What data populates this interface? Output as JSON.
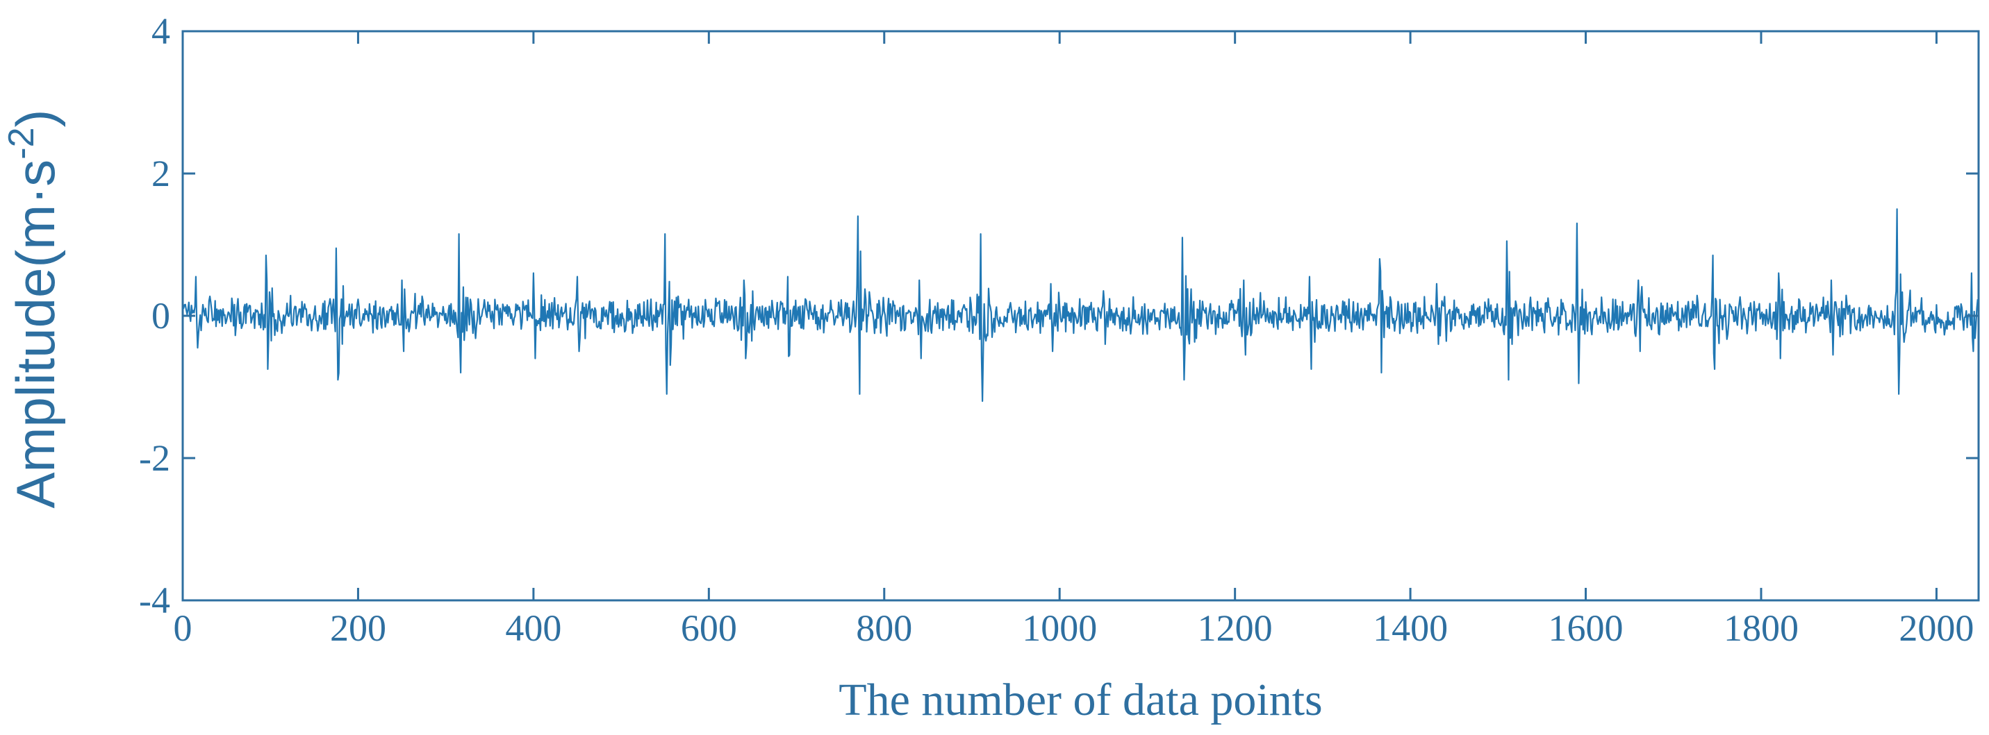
{
  "colors": {
    "signal": "#1f77b4",
    "axis": "#2e6fa0",
    "text": "#2e6fa0"
  },
  "chart_data": {
    "type": "line",
    "title": "",
    "xlabel": "The number of data points",
    "ylabel_base": "Amplitude(m",
    "ylabel_mid": "·s",
    "ylabel_sup": "-2",
    "ylabel_end": ")",
    "xlim": [
      0,
      2048
    ],
    "ylim": [
      -4,
      4
    ],
    "xticks": [
      0,
      200,
      400,
      600,
      800,
      1000,
      1200,
      1400,
      1600,
      1800,
      2000
    ],
    "xtick_labels": [
      "0",
      "200",
      "400",
      "600",
      "800",
      "1000",
      "1200",
      "1400",
      "1600",
      "1800",
      "2000"
    ],
    "yticks": [
      -4,
      -2,
      0,
      2,
      4
    ],
    "ytick_labels": [
      "-4",
      "-2",
      "0",
      "2",
      "4"
    ],
    "grid": false,
    "legend": "none",
    "n_points": 2048,
    "baseline_amplitude": 0.2,
    "bursts": [
      {
        "x": 15,
        "peak": 0.55,
        "trough": -0.45
      },
      {
        "x": 95,
        "peak": 0.85,
        "trough": -0.75
      },
      {
        "x": 175,
        "peak": 0.95,
        "trough": -0.9
      },
      {
        "x": 250,
        "peak": 0.5,
        "trough": -0.5
      },
      {
        "x": 315,
        "peak": 1.15,
        "trough": -0.8
      },
      {
        "x": 400,
        "peak": 0.6,
        "trough": -0.6
      },
      {
        "x": 450,
        "peak": 0.55,
        "trough": -0.5
      },
      {
        "x": 550,
        "peak": 1.15,
        "trough": -1.1
      },
      {
        "x": 640,
        "peak": 0.5,
        "trough": -0.6
      },
      {
        "x": 690,
        "peak": 0.55,
        "trough": -0.55
      },
      {
        "x": 770,
        "peak": 1.4,
        "trough": -1.1
      },
      {
        "x": 840,
        "peak": 0.5,
        "trough": -0.6
      },
      {
        "x": 910,
        "peak": 1.15,
        "trough": -1.2
      },
      {
        "x": 990,
        "peak": 0.45,
        "trough": -0.5
      },
      {
        "x": 1050,
        "peak": 0.35,
        "trough": -0.4
      },
      {
        "x": 1140,
        "peak": 1.1,
        "trough": -0.9
      },
      {
        "x": 1210,
        "peak": 0.5,
        "trough": -0.55
      },
      {
        "x": 1285,
        "peak": 0.55,
        "trough": -0.75
      },
      {
        "x": 1365,
        "peak": 0.8,
        "trough": -0.8
      },
      {
        "x": 1430,
        "peak": 0.45,
        "trough": -0.4
      },
      {
        "x": 1510,
        "peak": 1.05,
        "trough": -0.9
      },
      {
        "x": 1590,
        "peak": 1.3,
        "trough": -0.95
      },
      {
        "x": 1660,
        "peak": 0.5,
        "trough": -0.5
      },
      {
        "x": 1745,
        "peak": 0.85,
        "trough": -0.75
      },
      {
        "x": 1820,
        "peak": 0.6,
        "trough": -0.6
      },
      {
        "x": 1880,
        "peak": 0.5,
        "trough": -0.55
      },
      {
        "x": 1955,
        "peak": 1.5,
        "trough": -1.1
      },
      {
        "x": 2040,
        "peak": 0.6,
        "trough": -0.5
      }
    ]
  }
}
